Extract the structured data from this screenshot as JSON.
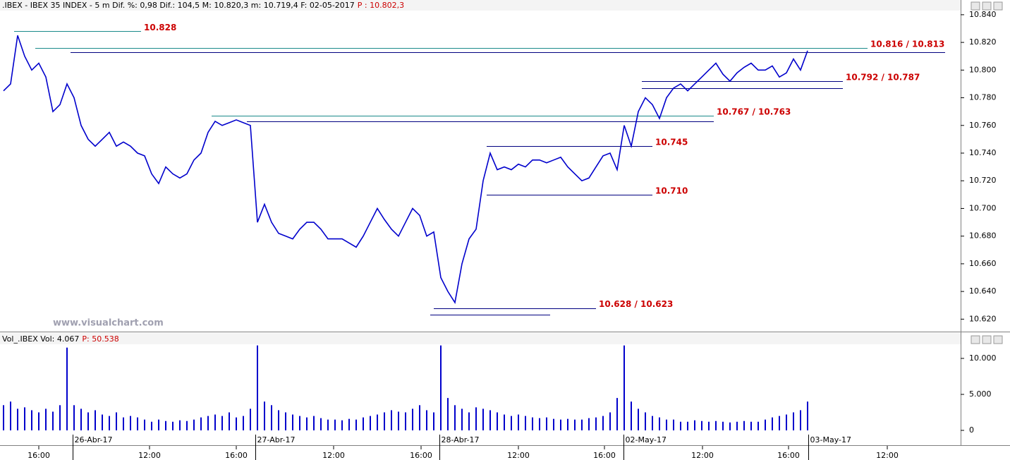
{
  "chart_data": [
    {
      "type": "line",
      "title": ".IBEX - IBEX 35 INDEX - 5 m Dif. %: 0,98 Dif.: 104,5 M: 10.820,3 m: 10.719,4 F: 02-05-2017",
      "subtitle": "P : 10.802,3",
      "annotation": "www.visualchart.com",
      "color": "#0000cc",
      "xlim": [
        -0.5,
        135.7
      ],
      "ylim": [
        10.611,
        10.843
      ],
      "yticks": [
        {
          "value": 10.62,
          "label": "10.620"
        },
        {
          "value": 10.64,
          "label": "10.640"
        },
        {
          "value": 10.66,
          "label": "10.660"
        },
        {
          "value": 10.68,
          "label": "10.680"
        },
        {
          "value": 10.7,
          "label": "10.700"
        },
        {
          "value": 10.72,
          "label": "10.720"
        },
        {
          "value": 10.74,
          "label": "10.740"
        },
        {
          "value": 10.76,
          "label": "10.760"
        },
        {
          "value": 10.78,
          "label": "10.780"
        },
        {
          "value": 10.8,
          "label": "10.800"
        },
        {
          "value": 10.82,
          "label": "10.820"
        },
        {
          "value": 10.84,
          "label": "10.840"
        }
      ],
      "values": [
        10.785,
        10.79,
        10.825,
        10.81,
        10.8,
        10.805,
        10.795,
        10.77,
        10.775,
        10.79,
        10.78,
        10.76,
        10.75,
        10.745,
        10.75,
        10.755,
        10.745,
        10.748,
        10.745,
        10.74,
        10.738,
        10.725,
        10.718,
        10.73,
        10.725,
        10.722,
        10.725,
        10.735,
        10.74,
        10.755,
        10.763,
        10.76,
        10.762,
        10.764,
        10.762,
        10.76,
        10.69,
        10.703,
        10.69,
        10.682,
        10.68,
        10.678,
        10.685,
        10.69,
        10.69,
        10.685,
        10.678,
        10.678,
        10.678,
        10.675,
        10.672,
        10.68,
        10.69,
        10.7,
        10.692,
        10.685,
        10.68,
        10.69,
        10.7,
        10.695,
        10.68,
        10.683,
        10.65,
        10.64,
        10.632,
        10.66,
        10.678,
        10.685,
        10.72,
        10.74,
        10.728,
        10.73,
        10.728,
        10.732,
        10.73,
        10.735,
        10.735,
        10.733,
        10.735,
        10.737,
        10.73,
        10.725,
        10.72,
        10.722,
        10.73,
        10.738,
        10.74,
        10.728,
        10.76,
        10.745,
        10.77,
        10.78,
        10.775,
        10.765,
        10.78,
        10.787,
        10.79,
        10.785,
        10.79,
        10.795,
        10.8,
        10.805,
        10.797,
        10.792,
        10.798,
        10.802,
        10.805,
        10.8,
        10.8,
        10.803,
        10.795,
        10.798,
        10.808,
        10.8,
        10.814
      ],
      "levels": [
        {
          "label": "10.828",
          "lines": [
            {
              "value": 10.828,
              "x": [
                1.5,
                19.5
              ],
              "color": "#1a8a8a"
            }
          ]
        },
        {
          "label": "10.816 / 10.813",
          "lines": [
            {
              "value": 10.816,
              "x": [
                4.5,
                122.5
              ],
              "color": "#1a8a8a"
            },
            {
              "value": 10.813,
              "x": [
                9.5,
                133.5
              ],
              "color": "#000080"
            }
          ]
        },
        {
          "label": "10.792 / 10.787",
          "lines": [
            {
              "value": 10.792,
              "x": [
                90.5,
                119
              ],
              "color": "#000080"
            },
            {
              "value": 10.787,
              "x": [
                90.5,
                119
              ],
              "color": "#000080"
            }
          ]
        },
        {
          "label": "10.767 / 10.763",
          "lines": [
            {
              "value": 10.767,
              "x": [
                29.5,
                100.7
              ],
              "color": "#1a8a8a"
            },
            {
              "value": 10.763,
              "x": [
                34.5,
                100.7
              ],
              "color": "#000080"
            }
          ]
        },
        {
          "label": "10.745",
          "lines": [
            {
              "value": 10.745,
              "x": [
                68.5,
                92
              ],
              "color": "#000080"
            }
          ]
        },
        {
          "label": "10.710",
          "lines": [
            {
              "value": 10.71,
              "x": [
                68.5,
                92
              ],
              "color": "#000080"
            }
          ]
        },
        {
          "label": "10.628 / 10.623",
          "lines": [
            {
              "value": 10.628,
              "x": [
                61,
                84
              ],
              "color": "#000080"
            },
            {
              "value": 10.623,
              "x": [
                60.5,
                77.5
              ],
              "color": "#000080"
            }
          ]
        }
      ]
    },
    {
      "type": "bar",
      "title": "Vol_.IBEX Vol: 4.067",
      "subtitle": "P: 50.538",
      "color": "#0000cc",
      "xlim": [
        -0.5,
        135.7
      ],
      "ylim": [
        -1960,
        11960
      ],
      "yticks": [
        0,
        {
          "value": 5000,
          "label": "5.000"
        },
        {
          "value": 10000,
          "label": "10.000"
        }
      ],
      "xticks": [
        {
          "value": 5,
          "label": "16:00"
        },
        {
          "value": 20.7,
          "label": "12:00"
        },
        {
          "value": 33,
          "label": "16:00"
        },
        {
          "value": 46.8,
          "label": "12:00"
        },
        {
          "value": 59.2,
          "label": "16:00"
        },
        {
          "value": 73,
          "label": "12:00"
        },
        {
          "value": 85.2,
          "label": "16:00"
        },
        {
          "value": 99.1,
          "label": "12:00"
        },
        {
          "value": 111.3,
          "label": "16:00"
        },
        {
          "value": 125.3,
          "label": "12:00"
        }
      ],
      "xticks_dates": [
        {
          "value": 9.8,
          "label": "26-Abr-17"
        },
        {
          "value": 35.7,
          "label": "27-Abr-17"
        },
        {
          "value": 61.8,
          "label": "28-Abr-17"
        },
        {
          "value": 87.9,
          "label": "02-May-17"
        },
        {
          "value": 114.1,
          "label": "03-May-17"
        }
      ],
      "values": [
        3500,
        4000,
        3000,
        3200,
        2800,
        2500,
        3000,
        2600,
        3500,
        11500,
        3500,
        3000,
        2500,
        2800,
        2200,
        2000,
        2500,
        1800,
        2000,
        1800,
        1500,
        1200,
        1500,
        1300,
        1200,
        1400,
        1300,
        1500,
        1800,
        2000,
        2200,
        2000,
        2500,
        1800,
        2000,
        3000,
        11800,
        4000,
        3500,
        2800,
        2500,
        2200,
        2000,
        1800,
        2000,
        1700,
        1500,
        1500,
        1400,
        1600,
        1500,
        1800,
        2000,
        2200,
        2500,
        2800,
        2600,
        2500,
        3000,
        3500,
        2800,
        2500,
        11800,
        4500,
        3500,
        3000,
        2500,
        3200,
        3000,
        2800,
        2500,
        2200,
        2000,
        2200,
        2000,
        1800,
        1700,
        1800,
        1600,
        1500,
        1600,
        1500,
        1500,
        1700,
        1800,
        2000,
        2500,
        4500,
        11800,
        4000,
        3000,
        2500,
        2000,
        1800,
        1500,
        1500,
        1200,
        1200,
        1400,
        1300,
        1200,
        1300,
        1200,
        1100,
        1200,
        1300,
        1200,
        1200,
        1500,
        1800,
        2000,
        2200,
        2500,
        2800,
        4000
      ]
    }
  ]
}
